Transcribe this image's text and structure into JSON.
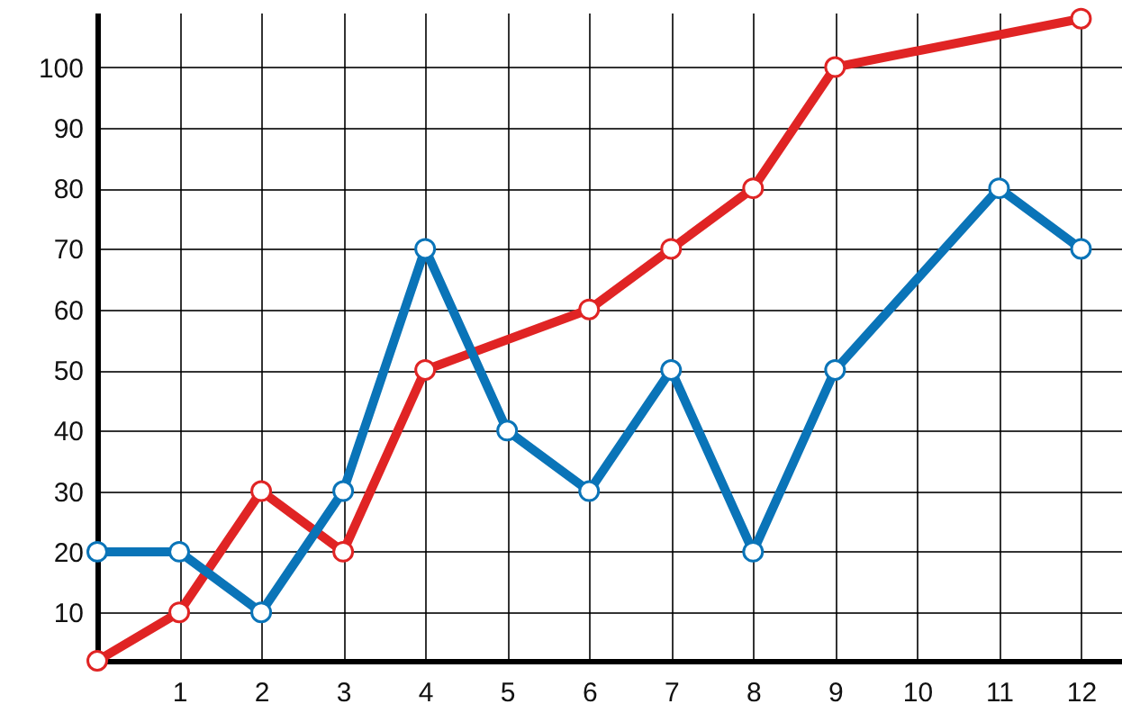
{
  "chart_data": {
    "type": "line",
    "xlim": [
      0,
      12.5
    ],
    "ylim": [
      2,
      109
    ],
    "xticks": [
      1,
      2,
      3,
      4,
      5,
      6,
      7,
      8,
      9,
      10,
      11,
      12
    ],
    "yticks": [
      10,
      20,
      30,
      40,
      50,
      60,
      70,
      80,
      90,
      100
    ],
    "grid": true,
    "marker": "circle",
    "line_style": "solid",
    "series": [
      {
        "color": "#e02424",
        "x": [
          0,
          1,
          2,
          3,
          4,
          6,
          7,
          8,
          9,
          12
        ],
        "values": [
          2,
          10,
          30,
          20,
          50,
          60,
          70,
          80,
          100,
          108
        ]
      },
      {
        "color": "#0a74b8",
        "x": [
          0,
          1,
          2,
          3,
          4,
          5,
          6,
          7,
          8,
          9,
          11,
          12
        ],
        "values": [
          20,
          20,
          10,
          30,
          70,
          40,
          30,
          50,
          20,
          50,
          80,
          70
        ]
      }
    ]
  }
}
